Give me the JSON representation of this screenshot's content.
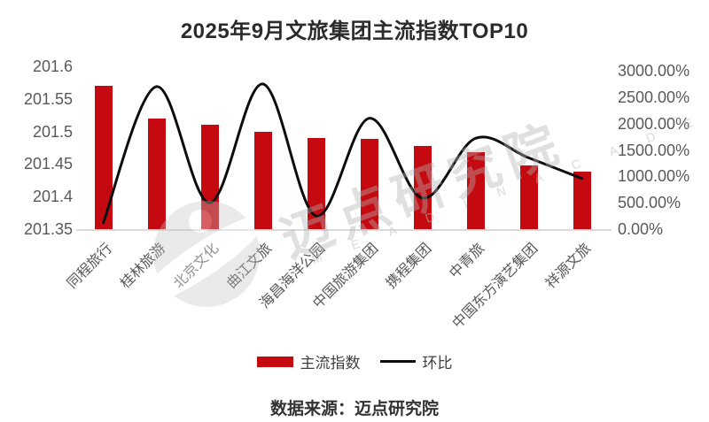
{
  "header": {
    "title": "2025年9月文旅集团主流指数TOP10"
  },
  "footer": {
    "source": "数据来源：迈点研究院"
  },
  "legend": {
    "bar_label": "主流指数",
    "line_label": "环比"
  },
  "watermark": {
    "brand_cn": "迈点研究院",
    "brand_en": "M E A D I N  A C A D E M Y"
  },
  "colors": {
    "bar": "#c40a10",
    "line": "#0d0d0d",
    "axis_text": "#595959",
    "title_text": "#2b2b2b",
    "baseline": "#d9d9d9",
    "background": "#ffffff"
  },
  "chart_data": {
    "type": "combo",
    "title": "2025年9月文旅集团主流指数TOP10",
    "categories": [
      "同程旅行",
      "桂林旅游",
      "北京文化",
      "曲江文旅",
      "海昌海洋公园",
      "中国旅游集团",
      "携程集团",
      "中青旅",
      "中国东方演艺集团",
      "祥源文旅"
    ],
    "series": [
      {
        "name": "主流指数",
        "type": "bar",
        "axis": "left",
        "values": [
          201.57,
          201.52,
          201.51,
          201.5,
          201.49,
          201.488,
          201.478,
          201.468,
          201.448,
          201.438
        ]
      },
      {
        "name": "环比",
        "type": "line",
        "axis": "right",
        "unit": "%",
        "values": [
          120,
          2700,
          500,
          2750,
          250,
          2100,
          590,
          1720,
          1350,
          960
        ]
      }
    ],
    "left_axis": {
      "min": 201.35,
      "max": 201.6,
      "tick_values": [
        201.6,
        201.55,
        201.5,
        201.45,
        201.4,
        201.35
      ],
      "tick_labels": [
        "201.6",
        "201.55",
        "201.5",
        "201.45",
        "201.4",
        "201.35"
      ]
    },
    "right_axis": {
      "min": 0,
      "max": 3000,
      "tick_values": [
        3000,
        2500,
        2000,
        1500,
        1000,
        500,
        0
      ],
      "tick_labels": [
        "3000.00%",
        "2500.00%",
        "2000.00%",
        "1500.00%",
        "1000.00%",
        "500.00%",
        "0.00%"
      ]
    },
    "grid": false,
    "legend_position": "bottom"
  }
}
